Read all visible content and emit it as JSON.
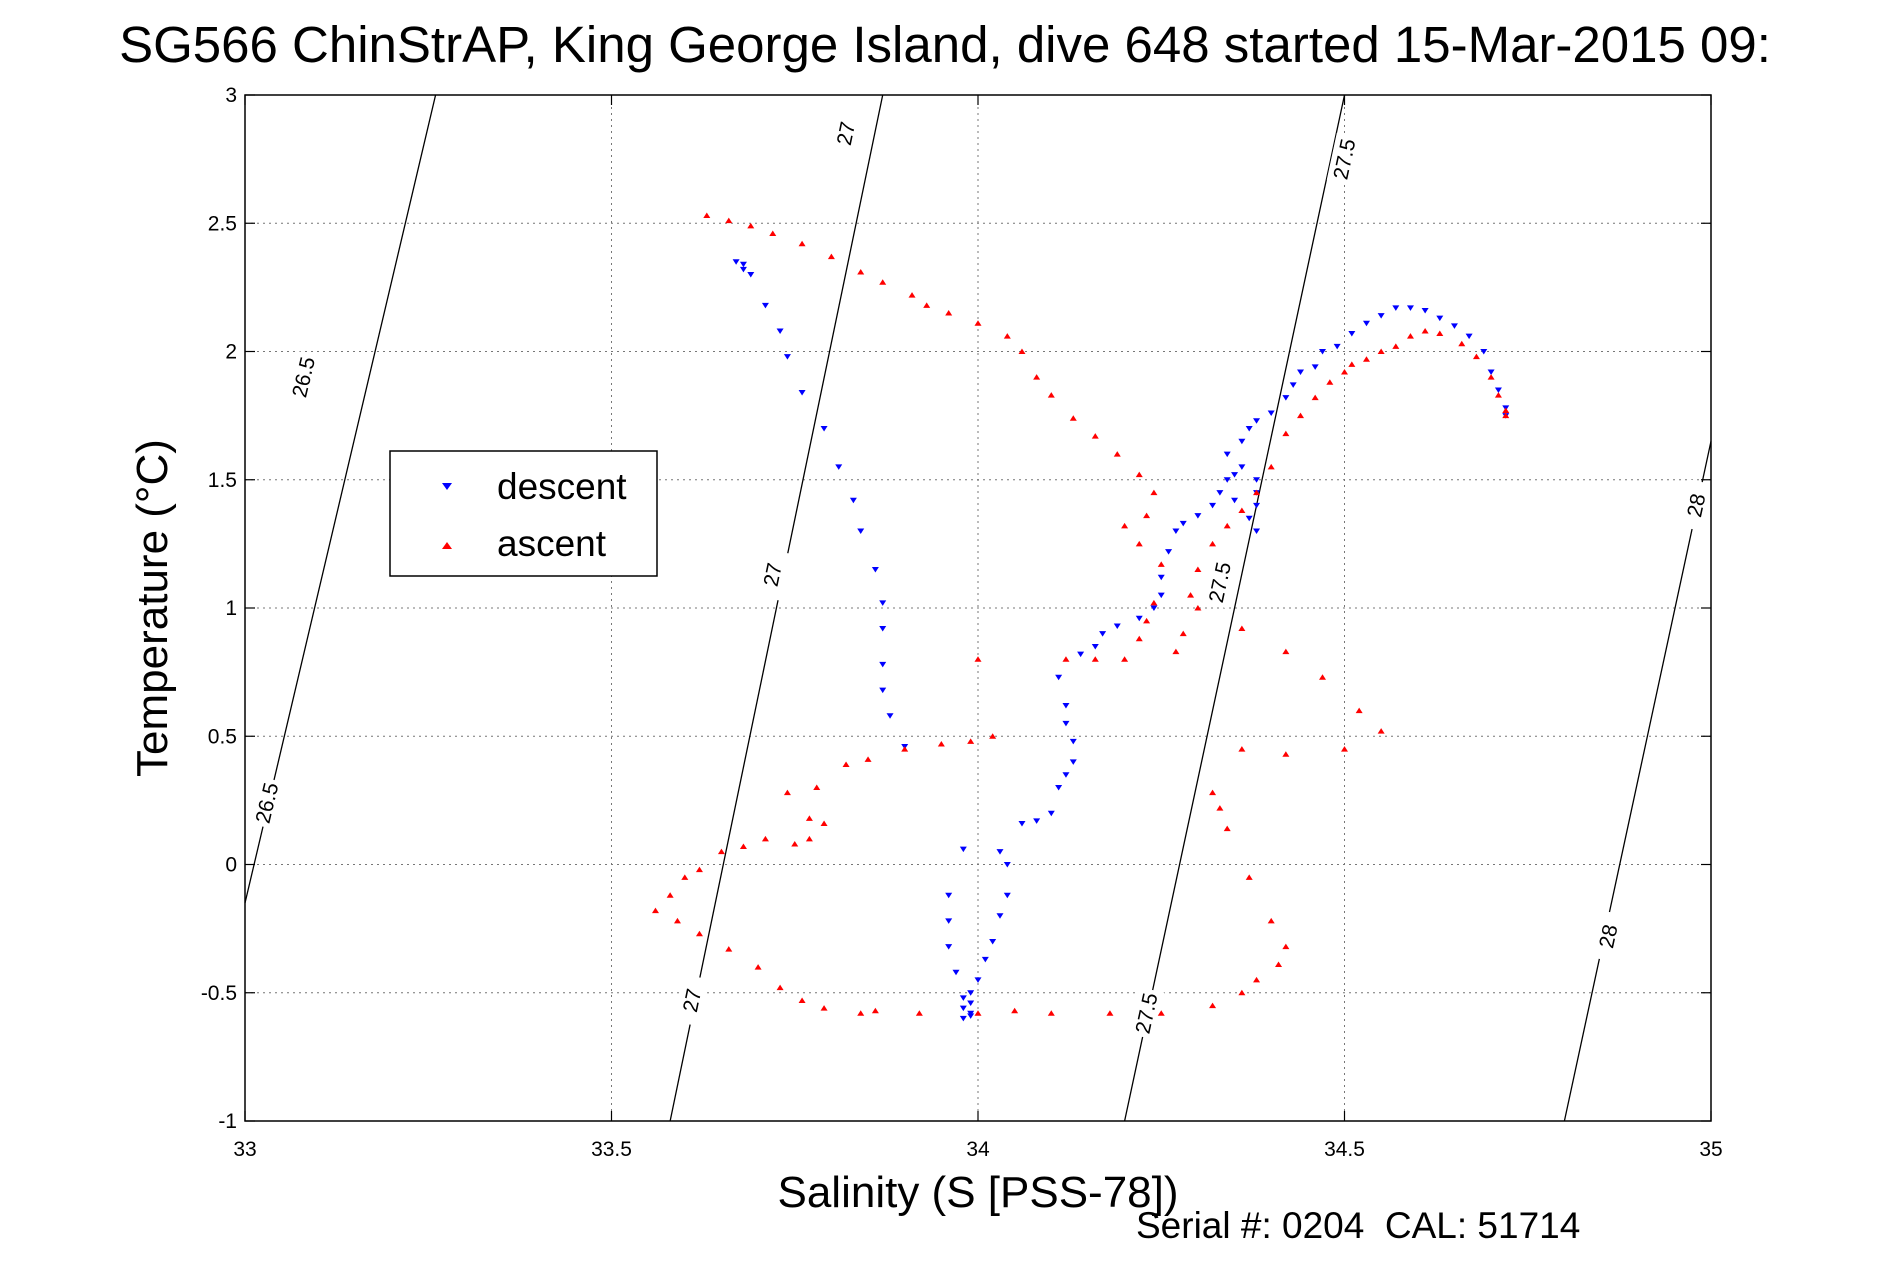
{
  "chart_data": {
    "type": "scatter",
    "title": "SG566 ChinStrAP, King George Island, dive 648 started 15-Mar-2015 09:",
    "xlabel": "Salinity (S [PSS-78])",
    "ylabel": "Temperature (°C)",
    "xlim": [
      33,
      35
    ],
    "ylim": [
      -1,
      3
    ],
    "xticks": [
      33,
      33.5,
      34,
      34.5,
      35
    ],
    "yticks": [
      -1,
      -0.5,
      0,
      0.5,
      1,
      1.5,
      2,
      2.5,
      3
    ],
    "xtick_labels": [
      "33",
      "33.5",
      "34",
      "34.5",
      "35"
    ],
    "ytick_labels": [
      "-1",
      "-0.5",
      "0",
      "0.5",
      "1",
      "1.5",
      "2",
      "2.5",
      "3"
    ],
    "grid": true,
    "legend_position": "left",
    "footer": "Serial #: 0204  CAL: 51714",
    "density_contours": [
      {
        "label": "26.5",
        "points": [
          [
            33.0,
            -0.15
          ],
          [
            33.26,
            3.0
          ]
        ],
        "label_positions": [
          [
            33.08,
            1.9
          ],
          [
            33.03,
            0.24
          ]
        ]
      },
      {
        "label": "27",
        "points": [
          [
            33.58,
            -1.0
          ],
          [
            33.87,
            3.0
          ]
        ],
        "label_positions": [
          [
            33.82,
            2.85
          ],
          [
            33.72,
            1.13
          ],
          [
            33.61,
            -0.53
          ]
        ]
      },
      {
        "label": "27.5",
        "points": [
          [
            34.2,
            -1.0
          ],
          [
            34.5,
            3.0
          ]
        ],
        "label_positions": [
          [
            34.5,
            2.75
          ],
          [
            34.33,
            1.1
          ],
          [
            34.23,
            -0.58
          ]
        ]
      },
      {
        "label": "28",
        "points": [
          [
            34.8,
            -1.0
          ],
          [
            35.0,
            1.65
          ]
        ],
        "label_positions": [
          [
            34.98,
            1.4
          ],
          [
            34.86,
            -0.28
          ]
        ]
      }
    ],
    "series": [
      {
        "name": "descent",
        "color": "#0000ff",
        "marker": "triangle-down",
        "points": [
          [
            33.67,
            2.35
          ],
          [
            33.68,
            2.34
          ],
          [
            33.68,
            2.32
          ],
          [
            33.69,
            2.3
          ],
          [
            33.71,
            2.18
          ],
          [
            33.73,
            2.08
          ],
          [
            33.74,
            1.98
          ],
          [
            33.76,
            1.84
          ],
          [
            33.79,
            1.7
          ],
          [
            33.81,
            1.55
          ],
          [
            33.83,
            1.42
          ],
          [
            33.84,
            1.3
          ],
          [
            33.86,
            1.15
          ],
          [
            33.87,
            1.02
          ],
          [
            33.87,
            0.92
          ],
          [
            33.87,
            0.78
          ],
          [
            33.87,
            0.68
          ],
          [
            33.88,
            0.58
          ],
          [
            33.9,
            0.46
          ],
          [
            33.98,
            0.06
          ],
          [
            33.96,
            -0.12
          ],
          [
            33.96,
            -0.22
          ],
          [
            33.96,
            -0.32
          ],
          [
            33.97,
            -0.42
          ],
          [
            33.98,
            -0.52
          ],
          [
            33.98,
            -0.56
          ],
          [
            33.99,
            -0.59
          ],
          [
            33.98,
            -0.6
          ],
          [
            33.99,
            -0.58
          ],
          [
            33.99,
            -0.54
          ],
          [
            33.99,
            -0.5
          ],
          [
            34.0,
            -0.45
          ],
          [
            34.01,
            -0.37
          ],
          [
            34.02,
            -0.3
          ],
          [
            34.03,
            -0.2
          ],
          [
            34.04,
            -0.12
          ],
          [
            34.04,
            0.0
          ],
          [
            34.03,
            0.05
          ],
          [
            34.06,
            0.16
          ],
          [
            34.08,
            0.17
          ],
          [
            34.1,
            0.2
          ],
          [
            34.11,
            0.3
          ],
          [
            34.12,
            0.35
          ],
          [
            34.13,
            0.4
          ],
          [
            34.13,
            0.48
          ],
          [
            34.12,
            0.55
          ],
          [
            34.12,
            0.62
          ],
          [
            34.11,
            0.73
          ],
          [
            34.14,
            0.82
          ],
          [
            34.16,
            0.85
          ],
          [
            34.17,
            0.9
          ],
          [
            34.19,
            0.93
          ],
          [
            34.22,
            0.96
          ],
          [
            34.24,
            1.0
          ],
          [
            34.25,
            1.05
          ],
          [
            34.25,
            1.12
          ],
          [
            34.26,
            1.22
          ],
          [
            34.27,
            1.3
          ],
          [
            34.28,
            1.33
          ],
          [
            34.3,
            1.36
          ],
          [
            34.32,
            1.4
          ],
          [
            34.33,
            1.45
          ],
          [
            34.34,
            1.5
          ],
          [
            34.35,
            1.52
          ],
          [
            34.36,
            1.55
          ],
          [
            34.38,
            1.5
          ],
          [
            34.38,
            1.45
          ],
          [
            34.38,
            1.4
          ],
          [
            34.37,
            1.35
          ],
          [
            34.38,
            1.3
          ],
          [
            34.35,
            1.42
          ],
          [
            34.34,
            1.6
          ],
          [
            34.36,
            1.65
          ],
          [
            34.37,
            1.7
          ],
          [
            34.38,
            1.73
          ],
          [
            34.4,
            1.76
          ],
          [
            34.42,
            1.82
          ],
          [
            34.43,
            1.87
          ],
          [
            34.44,
            1.92
          ],
          [
            34.46,
            1.94
          ],
          [
            34.47,
            2.0
          ],
          [
            34.49,
            2.02
          ],
          [
            34.51,
            2.07
          ],
          [
            34.53,
            2.11
          ],
          [
            34.55,
            2.14
          ],
          [
            34.57,
            2.17
          ],
          [
            34.59,
            2.17
          ],
          [
            34.61,
            2.16
          ],
          [
            34.63,
            2.13
          ],
          [
            34.65,
            2.1
          ],
          [
            34.67,
            2.06
          ],
          [
            34.69,
            2.0
          ],
          [
            34.7,
            1.92
          ],
          [
            34.71,
            1.85
          ],
          [
            34.72,
            1.78
          ],
          [
            34.72,
            1.75
          ]
        ]
      },
      {
        "name": "ascent",
        "color": "#ff0000",
        "marker": "triangle-up",
        "points": [
          [
            33.63,
            2.53
          ],
          [
            33.66,
            2.51
          ],
          [
            33.69,
            2.49
          ],
          [
            33.72,
            2.46
          ],
          [
            33.76,
            2.42
          ],
          [
            33.8,
            2.37
          ],
          [
            33.84,
            2.31
          ],
          [
            33.87,
            2.27
          ],
          [
            33.91,
            2.22
          ],
          [
            33.93,
            2.18
          ],
          [
            33.96,
            2.15
          ],
          [
            34.0,
            2.11
          ],
          [
            34.04,
            2.06
          ],
          [
            34.06,
            2.0
          ],
          [
            34.08,
            1.9
          ],
          [
            34.1,
            1.83
          ],
          [
            34.13,
            1.74
          ],
          [
            34.16,
            1.67
          ],
          [
            34.19,
            1.6
          ],
          [
            34.22,
            1.52
          ],
          [
            34.24,
            1.45
          ],
          [
            34.23,
            1.36
          ],
          [
            34.2,
            1.32
          ],
          [
            34.22,
            1.25
          ],
          [
            34.25,
            1.17
          ],
          [
            34.24,
            1.02
          ],
          [
            34.23,
            0.95
          ],
          [
            34.22,
            0.88
          ],
          [
            34.2,
            0.8
          ],
          [
            34.16,
            0.8
          ],
          [
            34.12,
            0.8
          ],
          [
            34.0,
            0.8
          ],
          [
            34.02,
            0.5
          ],
          [
            33.99,
            0.48
          ],
          [
            33.95,
            0.47
          ],
          [
            33.9,
            0.45
          ],
          [
            33.85,
            0.41
          ],
          [
            33.82,
            0.39
          ],
          [
            33.78,
            0.3
          ],
          [
            33.74,
            0.28
          ],
          [
            33.77,
            0.18
          ],
          [
            33.79,
            0.16
          ],
          [
            33.77,
            0.1
          ],
          [
            33.75,
            0.08
          ],
          [
            33.71,
            0.1
          ],
          [
            33.68,
            0.07
          ],
          [
            33.65,
            0.05
          ],
          [
            33.62,
            -0.02
          ],
          [
            33.6,
            -0.05
          ],
          [
            33.58,
            -0.12
          ],
          [
            33.56,
            -0.18
          ],
          [
            33.59,
            -0.22
          ],
          [
            33.62,
            -0.27
          ],
          [
            33.66,
            -0.33
          ],
          [
            33.7,
            -0.4
          ],
          [
            33.73,
            -0.48
          ],
          [
            33.76,
            -0.53
          ],
          [
            33.79,
            -0.56
          ],
          [
            33.84,
            -0.58
          ],
          [
            33.86,
            -0.57
          ],
          [
            33.92,
            -0.58
          ],
          [
            34.0,
            -0.58
          ],
          [
            34.05,
            -0.57
          ],
          [
            34.1,
            -0.58
          ],
          [
            34.18,
            -0.58
          ],
          [
            34.25,
            -0.58
          ],
          [
            34.32,
            -0.55
          ],
          [
            34.36,
            -0.5
          ],
          [
            34.38,
            -0.45
          ],
          [
            34.41,
            -0.39
          ],
          [
            34.42,
            -0.32
          ],
          [
            34.4,
            -0.22
          ],
          [
            34.37,
            -0.05
          ],
          [
            34.34,
            0.14
          ],
          [
            34.33,
            0.22
          ],
          [
            34.32,
            0.28
          ],
          [
            34.36,
            0.45
          ],
          [
            34.42,
            0.43
          ],
          [
            34.5,
            0.45
          ],
          [
            34.55,
            0.52
          ],
          [
            34.52,
            0.6
          ],
          [
            34.47,
            0.73
          ],
          [
            34.42,
            0.83
          ],
          [
            34.36,
            0.92
          ],
          [
            34.3,
            1.0
          ],
          [
            34.27,
            0.83
          ],
          [
            34.28,
            0.9
          ],
          [
            34.29,
            1.05
          ],
          [
            34.3,
            1.15
          ],
          [
            34.32,
            1.25
          ],
          [
            34.34,
            1.32
          ],
          [
            34.36,
            1.38
          ],
          [
            34.38,
            1.45
          ],
          [
            34.4,
            1.55
          ],
          [
            34.42,
            1.68
          ],
          [
            34.44,
            1.75
          ],
          [
            34.46,
            1.82
          ],
          [
            34.48,
            1.88
          ],
          [
            34.5,
            1.92
          ],
          [
            34.51,
            1.95
          ],
          [
            34.53,
            1.97
          ],
          [
            34.55,
            2.0
          ],
          [
            34.57,
            2.02
          ],
          [
            34.59,
            2.06
          ],
          [
            34.61,
            2.08
          ],
          [
            34.63,
            2.07
          ],
          [
            34.66,
            2.03
          ],
          [
            34.68,
            1.98
          ],
          [
            34.7,
            1.9
          ],
          [
            34.71,
            1.83
          ],
          [
            34.72,
            1.77
          ],
          [
            34.72,
            1.75
          ]
        ]
      }
    ]
  }
}
